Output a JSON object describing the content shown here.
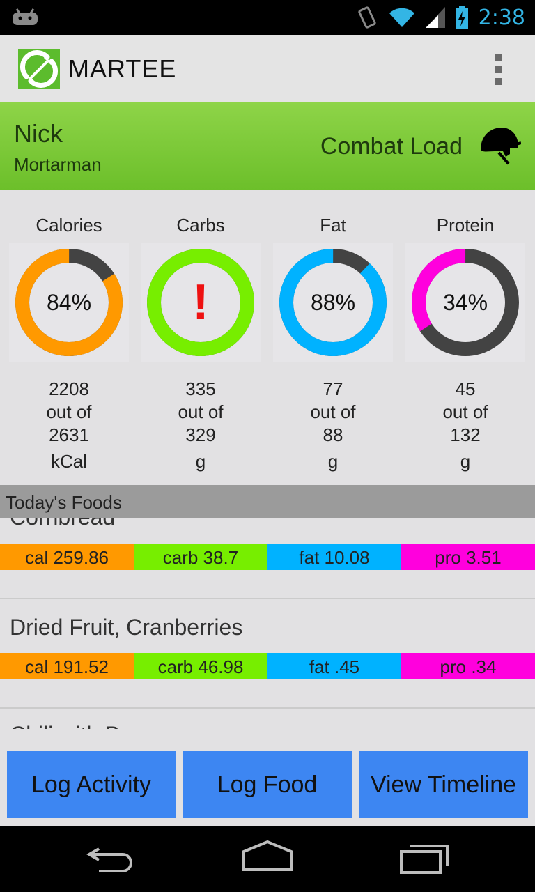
{
  "status_bar": {
    "time": "2:38"
  },
  "app": {
    "title": "MARTEE",
    "icons": {
      "logo": "fork-leaf-logo",
      "menu": "overflow-menu-icon"
    }
  },
  "profile": {
    "name": "Nick",
    "role": "Mortarman",
    "load": "Combat Load",
    "load_icon": "helmet-icon"
  },
  "stats": [
    {
      "label": "Calories",
      "percent_text": "84%",
      "fraction": 0.84,
      "color": "#ff9900",
      "current": "2208",
      "out_of": "out of",
      "goal": "2631",
      "unit": "kCal"
    },
    {
      "label": "Carbs",
      "percent_text": "!",
      "fraction": 1.0,
      "color": "#77ee00",
      "current": "335",
      "out_of": "out of",
      "goal": "329",
      "unit": "g"
    },
    {
      "label": "Fat",
      "percent_text": "88%",
      "fraction": 0.88,
      "color": "#00b2ff",
      "current": "77",
      "out_of": "out of",
      "goal": "88",
      "unit": "g"
    },
    {
      "label": "Protein",
      "percent_text": "34%",
      "fraction": 0.34,
      "color": "#ff00dd",
      "current": "45",
      "out_of": "out of",
      "goal": "132",
      "unit": "g"
    }
  ],
  "foods_header": "Today's Foods",
  "foods": [
    {
      "name": "Cornbread",
      "cal": "cal 259.86",
      "carb": "carb 38.7",
      "fat": "fat 10.08",
      "pro": "pro 3.51"
    },
    {
      "name": "Dried Fruit, Cranberries",
      "cal": "cal 191.52",
      "carb": "carb 46.98",
      "fat": "fat .45",
      "pro": "pro .34"
    },
    {
      "name": "Chili with Beans"
    }
  ],
  "colors": {
    "cal": "#ff9900",
    "carb": "#77ee00",
    "fat": "#00b2ff",
    "pro": "#ff00dd",
    "remaining": "#434343",
    "button": "#3d86f2",
    "banner": "#7cc93a"
  },
  "buttons": {
    "log_activity": "Log Activity",
    "log_food": "Log Food",
    "view_timeline": "View Timeline"
  },
  "nav": {
    "back": "back-icon",
    "home": "home-icon",
    "recents": "recents-icon"
  }
}
